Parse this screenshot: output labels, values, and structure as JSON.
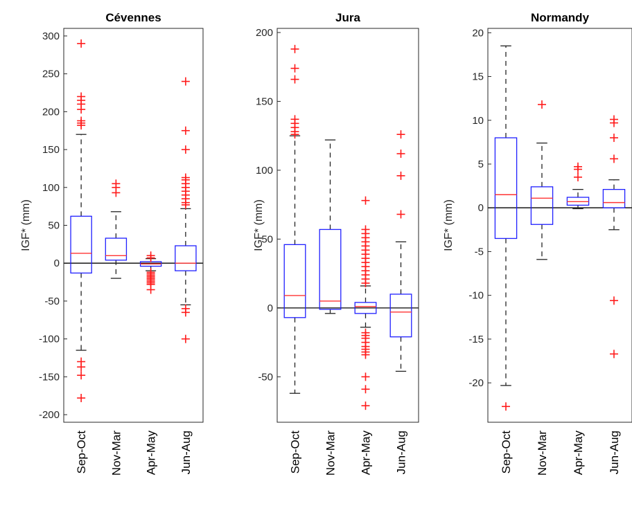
{
  "chart_data": [
    {
      "type": "box",
      "title": "Cévennes",
      "ylabel": "IGF* (mm)",
      "ylim": [
        -210,
        310
      ],
      "yticks": [
        -200,
        -150,
        -100,
        -50,
        0,
        50,
        100,
        150,
        200,
        250,
        300
      ],
      "categories": [
        "Sep-Oct",
        "Nov-Mar",
        "Apr-May",
        "Jun-Aug"
      ],
      "boxes": [
        {
          "q1": -13,
          "median": 13,
          "q3": 62,
          "whisker_low": -115,
          "whisker_high": 170,
          "outliers": [
            290,
            220,
            215,
            210,
            203,
            188,
            185,
            182,
            -130,
            -137,
            -148,
            -178
          ]
        },
        {
          "q1": 4,
          "median": 10,
          "q3": 33,
          "whisker_low": -20,
          "whisker_high": 68,
          "outliers": [
            105,
            100,
            93
          ]
        },
        {
          "q1": -4,
          "median": -1,
          "q3": 2,
          "whisker_low": -10,
          "whisker_high": 6,
          "outliers": [
            10,
            7,
            -12,
            -14,
            -16,
            -18,
            -20,
            -22,
            -24,
            -26,
            -28,
            -35
          ]
        },
        {
          "q1": -10,
          "median": 0,
          "q3": 23,
          "whisker_low": -55,
          "whisker_high": 72,
          "outliers": [
            240,
            175,
            150,
            113,
            110,
            105,
            100,
            95,
            90,
            85,
            80,
            77,
            -60,
            -65,
            -100
          ]
        }
      ]
    },
    {
      "type": "box",
      "title": "Jura",
      "ylabel": "IGF* (mm)",
      "ylim": [
        -83,
        203
      ],
      "yticks": [
        -50,
        0,
        50,
        100,
        150,
        200
      ],
      "categories": [
        "Sep-Oct",
        "Nov-Mar",
        "Apr-May",
        "Jun-Aug"
      ],
      "boxes": [
        {
          "q1": -7,
          "median": 9,
          "q3": 46,
          "whisker_low": -62,
          "whisker_high": 125,
          "outliers": [
            188,
            174,
            166,
            137,
            134,
            131,
            128,
            126
          ]
        },
        {
          "q1": -1,
          "median": 5,
          "q3": 57,
          "whisker_low": -4,
          "whisker_high": 122,
          "outliers": []
        },
        {
          "q1": -4,
          "median": 1,
          "q3": 4,
          "whisker_low": -14,
          "whisker_high": 16,
          "outliers": [
            78,
            57,
            54,
            51,
            48,
            45,
            42,
            39,
            36,
            33,
            30,
            27,
            24,
            21,
            18,
            -18,
            -20,
            -22,
            -25,
            -28,
            -30,
            -32,
            -34,
            -50,
            -59,
            -71
          ]
        },
        {
          "q1": -21,
          "median": -3,
          "q3": 10,
          "whisker_low": -46,
          "whisker_high": 48,
          "outliers": [
            126,
            112,
            96,
            68
          ]
        }
      ]
    },
    {
      "type": "box",
      "title": "Normandy",
      "ylabel": "IGF* (mm)",
      "ylim": [
        -24.5,
        20.5
      ],
      "yticks": [
        -20,
        -15,
        -10,
        -5,
        0,
        5,
        10,
        15,
        20
      ],
      "categories": [
        "Sep-Oct",
        "Nov-Mar",
        "Apr-May",
        "Jun-Aug"
      ],
      "boxes": [
        {
          "q1": -3.5,
          "median": 1.5,
          "q3": 8,
          "whisker_low": -20.3,
          "whisker_high": 18.5,
          "outliers": [
            -22.7
          ]
        },
        {
          "q1": -1.9,
          "median": 1.1,
          "q3": 2.4,
          "whisker_low": -5.9,
          "whisker_high": 7.4,
          "outliers": [
            11.8
          ]
        },
        {
          "q1": 0.3,
          "median": 0.7,
          "q3": 1.2,
          "whisker_low": -0.1,
          "whisker_high": 2.1,
          "outliers": [
            4.7,
            4.4,
            3.5
          ]
        },
        {
          "q1": 0,
          "median": 0.6,
          "q3": 2.1,
          "whisker_low": -2.5,
          "whisker_high": 3.2,
          "outliers": [
            10.1,
            9.7,
            8.0,
            5.6,
            -10.6,
            -16.7
          ]
        }
      ]
    }
  ]
}
